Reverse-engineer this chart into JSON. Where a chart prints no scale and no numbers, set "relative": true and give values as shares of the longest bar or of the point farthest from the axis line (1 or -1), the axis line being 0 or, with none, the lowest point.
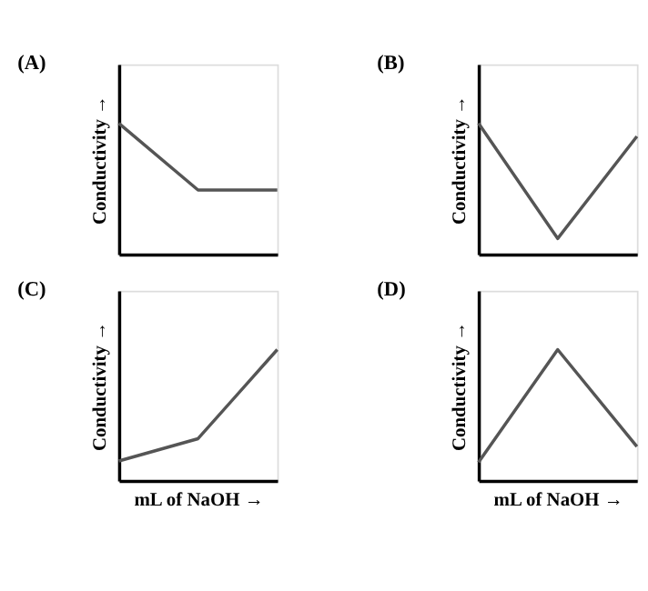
{
  "chart_data": [
    {
      "type": "line",
      "title": "(A)",
      "ylabel": "Conductivity →",
      "categories": [
        null,
        null,
        null
      ],
      "relative": true,
      "tick_labels": false,
      "grid": false,
      "series": [
        {
          "color": "#555555",
          "values": [
            1,
            0.49,
            0.49
          ]
        }
      ]
    },
    {
      "type": "line",
      "title": "(B)",
      "ylabel": "Conductivity →",
      "categories": [
        null,
        null,
        null
      ],
      "relative": true,
      "tick_labels": false,
      "grid": false,
      "series": [
        {
          "color": "#555555",
          "values": [
            1,
            0.12,
            0.9
          ]
        }
      ]
    },
    {
      "type": "line",
      "title": "(C)",
      "xlabel": "mL of NaOH →",
      "ylabel": "Conductivity →",
      "categories": [
        null,
        null,
        null
      ],
      "relative": true,
      "tick_labels": false,
      "grid": false,
      "series": [
        {
          "color": "#555555",
          "values": [
            0.15,
            0.32,
            1
          ]
        }
      ]
    },
    {
      "type": "line",
      "title": "(D)",
      "xlabel": "mL of NaOH →",
      "ylabel": "Conductivity →",
      "categories": [
        null,
        null,
        null
      ],
      "relative": true,
      "tick_labels": false,
      "grid": false,
      "series": [
        {
          "color": "#555555",
          "values": [
            0.14,
            1,
            0.26
          ]
        }
      ]
    }
  ]
}
